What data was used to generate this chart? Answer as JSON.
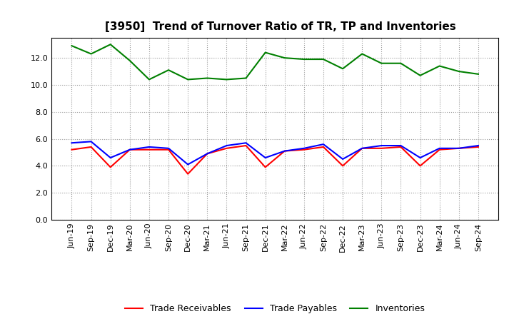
{
  "title": "[3950]  Trend of Turnover Ratio of TR, TP and Inventories",
  "x_labels": [
    "Jun-19",
    "Sep-19",
    "Dec-19",
    "Mar-20",
    "Jun-20",
    "Sep-20",
    "Dec-20",
    "Mar-21",
    "Jun-21",
    "Sep-21",
    "Dec-21",
    "Mar-22",
    "Jun-22",
    "Sep-22",
    "Dec-22",
    "Mar-23",
    "Jun-23",
    "Sep-23",
    "Dec-23",
    "Mar-24",
    "Jun-24",
    "Sep-24"
  ],
  "trade_receivables": [
    5.2,
    5.4,
    3.9,
    5.2,
    5.2,
    5.2,
    3.4,
    4.9,
    5.3,
    5.5,
    3.9,
    5.1,
    5.2,
    5.4,
    4.0,
    5.3,
    5.3,
    5.4,
    4.0,
    5.2,
    5.3,
    5.4
  ],
  "trade_payables": [
    5.7,
    5.8,
    4.6,
    5.2,
    5.4,
    5.3,
    4.1,
    4.9,
    5.5,
    5.7,
    4.6,
    5.1,
    5.3,
    5.6,
    4.5,
    5.3,
    5.5,
    5.5,
    4.6,
    5.3,
    5.3,
    5.5
  ],
  "inventories": [
    12.9,
    12.3,
    13.0,
    11.8,
    10.4,
    11.1,
    10.4,
    10.5,
    10.4,
    10.5,
    12.4,
    12.0,
    11.9,
    11.9,
    11.2,
    12.3,
    11.6,
    11.6,
    10.7,
    11.4,
    11.0,
    10.8
  ],
  "color_tr": "#FF0000",
  "color_tp": "#0000FF",
  "color_inv": "#008000",
  "ylim": [
    0.0,
    13.5
  ],
  "yticks": [
    0.0,
    2.0,
    4.0,
    6.0,
    8.0,
    10.0,
    12.0
  ],
  "background_color": "#ffffff",
  "grid_color": "#999999",
  "title_fontsize": 11,
  "legend_fontsize": 9,
  "tick_fontsize": 8
}
